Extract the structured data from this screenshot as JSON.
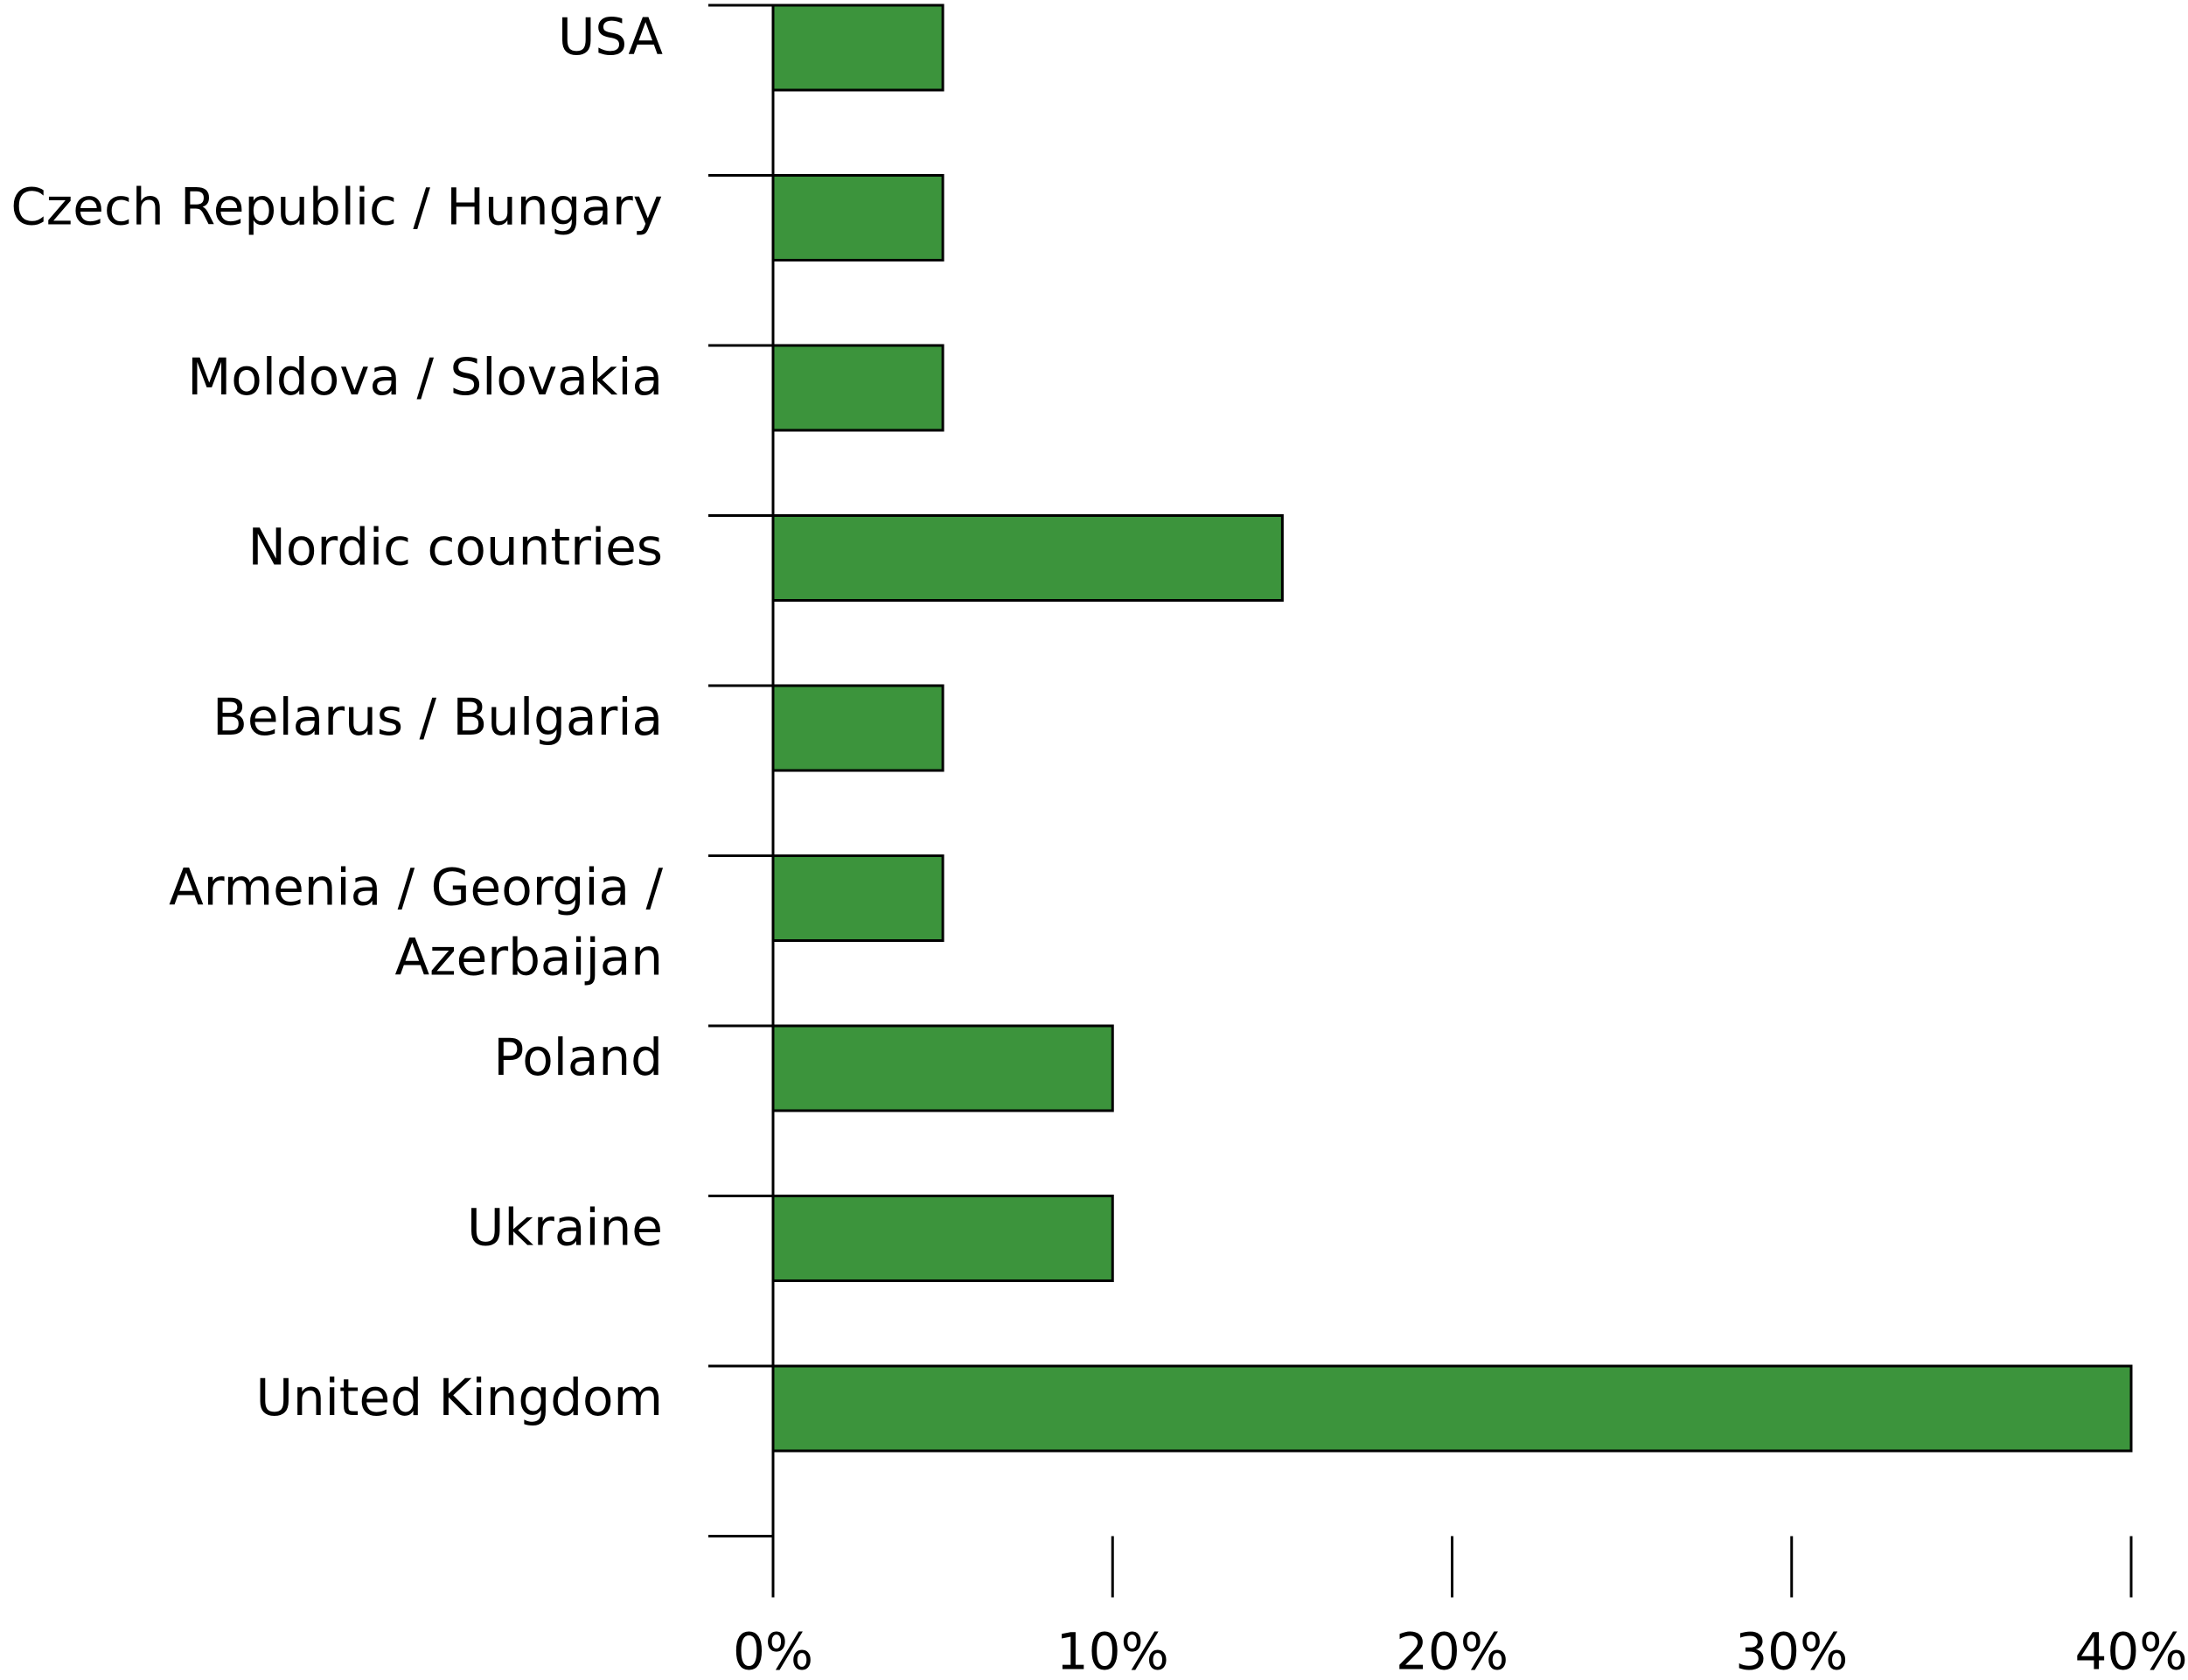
{
  "chart_data": {
    "type": "bar",
    "orientation": "horizontal",
    "categories": [
      "USA",
      "Czech Republic / Hungary",
      "Moldova / Slovakia",
      "Nordic countries",
      "Belarus / Bulgaria",
      "Armenia / Georgia / Azerbaijan",
      "Poland",
      "Ukraine",
      "United Kingdom"
    ],
    "values": [
      5,
      5,
      5,
      15,
      5,
      5,
      10,
      10,
      40
    ],
    "xlim": [
      0,
      40
    ],
    "xticks": [
      0,
      10,
      20,
      30,
      40
    ],
    "xtick_labels": [
      "0%",
      "10%",
      "20%",
      "30%",
      "40%"
    ],
    "bar_color": "#3c943c",
    "bar_edge_color": "#000000",
    "grid": false,
    "legend": "none"
  }
}
